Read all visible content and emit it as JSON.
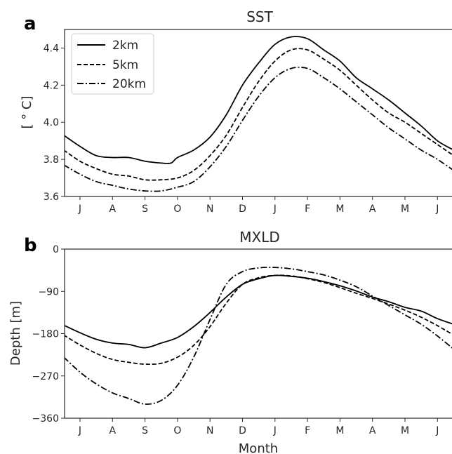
{
  "chart_data": [
    {
      "type": "line",
      "panel_label": "a",
      "title": "SST",
      "xlabel": "",
      "ylabel": "[$^\\circ$C]",
      "ylabel_display": "[ ° C]",
      "categories": [
        "J",
        "A",
        "S",
        "O",
        "N",
        "D",
        "J",
        "F",
        "M",
        "A",
        "M",
        "J"
      ],
      "ylim": [
        3.6,
        4.5
      ],
      "yticks": [
        "3.6",
        "3.8",
        "4.0",
        "4.2",
        "4.4"
      ],
      "ytick_values": [
        3.6,
        3.8,
        4.0,
        4.2,
        4.4
      ],
      "legend": "top-left",
      "grid": false,
      "series": [
        {
          "name": "2km",
          "style": "solid",
          "x": [
            -0.5,
            0,
            0.5,
            1,
            1.5,
            2,
            2.5,
            2.8,
            3,
            3.5,
            4,
            4.5,
            5,
            5.5,
            6,
            6.5,
            7,
            7.5,
            8,
            8.5,
            9,
            9.5,
            10,
            10.5,
            11,
            11.5
          ],
          "values": [
            3.93,
            3.87,
            3.82,
            3.81,
            3.81,
            3.79,
            3.78,
            3.78,
            3.81,
            3.85,
            3.92,
            4.04,
            4.2,
            4.32,
            4.42,
            4.46,
            4.45,
            4.39,
            4.33,
            4.24,
            4.18,
            4.12,
            4.05,
            3.98,
            3.9,
            3.85
          ]
        },
        {
          "name": "5km",
          "style": "dashed",
          "x": [
            -0.5,
            0,
            0.5,
            1,
            1.5,
            2,
            2.5,
            3,
            3.5,
            4,
            4.5,
            5,
            5.5,
            6,
            6.5,
            7,
            7.5,
            8,
            8.5,
            9,
            9.5,
            10,
            10.5,
            11,
            11.5
          ],
          "values": [
            3.85,
            3.79,
            3.75,
            3.72,
            3.71,
            3.69,
            3.69,
            3.7,
            3.74,
            3.82,
            3.93,
            4.08,
            4.22,
            4.33,
            4.39,
            4.39,
            4.34,
            4.28,
            4.2,
            4.12,
            4.05,
            4.0,
            3.94,
            3.88,
            3.82
          ]
        },
        {
          "name": "20km",
          "style": "dashdot",
          "x": [
            -0.5,
            0,
            0.5,
            1,
            1.5,
            2,
            2.5,
            3,
            3.5,
            4,
            4.5,
            5,
            5.5,
            6,
            6.5,
            7,
            7.5,
            8,
            8.5,
            9,
            9.5,
            10,
            10.5,
            11,
            11.5
          ],
          "values": [
            3.77,
            3.72,
            3.68,
            3.66,
            3.64,
            3.63,
            3.63,
            3.65,
            3.68,
            3.76,
            3.87,
            4.01,
            4.14,
            4.24,
            4.29,
            4.29,
            4.24,
            4.18,
            4.11,
            4.04,
            3.97,
            3.91,
            3.85,
            3.8,
            3.74
          ]
        }
      ]
    },
    {
      "type": "line",
      "panel_label": "b",
      "title": "MXLD",
      "xlabel": "Month",
      "ylabel": "Depth [m]",
      "categories": [
        "J",
        "A",
        "S",
        "O",
        "N",
        "D",
        "J",
        "F",
        "M",
        "A",
        "M",
        "J"
      ],
      "ylim": [
        -360,
        0
      ],
      "yticks": [
        "−360",
        "−270",
        "−180",
        "−90",
        "0"
      ],
      "ytick_values": [
        -360,
        -270,
        -180,
        -90,
        0
      ],
      "grid": false,
      "series": [
        {
          "name": "2km",
          "style": "solid",
          "x": [
            -0.5,
            0,
            0.5,
            1,
            1.5,
            2,
            2.5,
            3,
            3.5,
            4,
            4.5,
            5,
            5.5,
            6,
            6.5,
            7,
            7.5,
            8,
            8.5,
            9,
            9.5,
            10,
            10.5,
            11,
            11.5
          ],
          "values": [
            -162,
            -178,
            -192,
            -200,
            -203,
            -210,
            -200,
            -188,
            -165,
            -135,
            -102,
            -75,
            -63,
            -56,
            -58,
            -62,
            -69,
            -78,
            -89,
            -102,
            -112,
            -124,
            -132,
            -148,
            -160
          ]
        },
        {
          "name": "5km",
          "style": "dashed",
          "x": [
            -0.5,
            0,
            0.5,
            1,
            1.5,
            2,
            2.5,
            3,
            3.5,
            4,
            4.5,
            5,
            5.5,
            6,
            6.5,
            7,
            7.5,
            8,
            8.5,
            9,
            9.5,
            10,
            10.5,
            11,
            11.5
          ],
          "values": [
            -183,
            -204,
            -222,
            -235,
            -241,
            -245,
            -243,
            -230,
            -205,
            -165,
            -115,
            -75,
            -61,
            -56,
            -57,
            -63,
            -71,
            -82,
            -94,
            -105,
            -117,
            -130,
            -145,
            -163,
            -183
          ]
        },
        {
          "name": "20km",
          "style": "dashdot",
          "x": [
            -0.5,
            0,
            0.5,
            1,
            1.5,
            2,
            2.5,
            3,
            3.5,
            4,
            4.5,
            5,
            5.5,
            6,
            6.5,
            7,
            7.5,
            8,
            8.5,
            9,
            9.5,
            10,
            10.5,
            11,
            11.5
          ],
          "values": [
            -230,
            -262,
            -287,
            -306,
            -318,
            -330,
            -322,
            -290,
            -230,
            -150,
            -75,
            -48,
            -40,
            -39,
            -42,
            -48,
            -55,
            -66,
            -80,
            -100,
            -120,
            -140,
            -160,
            -185,
            -213
          ]
        }
      ]
    }
  ]
}
